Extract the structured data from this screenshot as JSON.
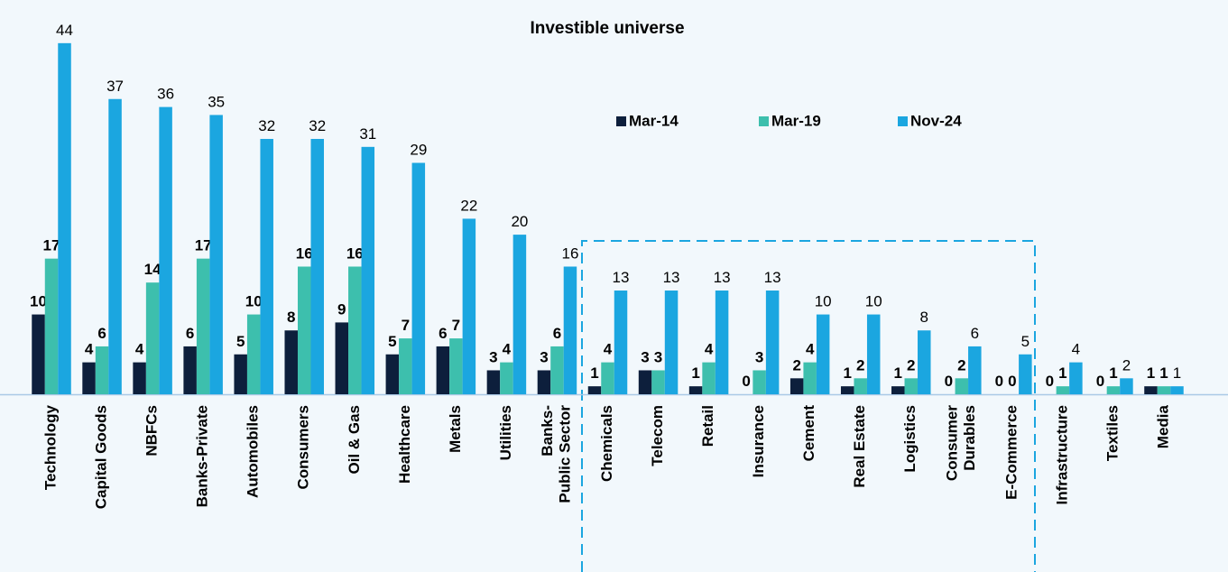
{
  "chart_data": {
    "type": "bar",
    "title": "Investible universe",
    "categories": [
      "Technology",
      "Capital Goods",
      "NBFCs",
      "Banks-Private",
      "Automobiles",
      "Consumers",
      "Oil & Gas",
      "Healthcare",
      "Metals",
      "Utilities",
      "Banks-Public Sector",
      "Chemicals",
      "Telecom",
      "Retail",
      "Insurance",
      "Cement",
      "Real Estate",
      "Logistics",
      "Consumer Durables",
      "E-Commerce",
      "Infrastructure",
      "Textiles",
      "Media"
    ],
    "series": [
      {
        "name": "Mar-14",
        "color": "#0d1f3c",
        "values": [
          10,
          4,
          4,
          6,
          5,
          8,
          9,
          5,
          6,
          3,
          3,
          1,
          3,
          1,
          0,
          2,
          1,
          1,
          0,
          0,
          0,
          0,
          1
        ]
      },
      {
        "name": "Mar-19",
        "color": "#3dbfad",
        "values": [
          17,
          6,
          14,
          17,
          10,
          16,
          16,
          7,
          7,
          4,
          6,
          4,
          3,
          4,
          3,
          4,
          2,
          2,
          2,
          0,
          1,
          1,
          1
        ]
      },
      {
        "name": "Nov-24",
        "color": "#1ba6e0",
        "values": [
          44,
          37,
          36,
          35,
          32,
          32,
          31,
          29,
          22,
          20,
          16,
          13,
          13,
          13,
          13,
          10,
          10,
          8,
          6,
          5,
          4,
          2,
          1
        ]
      }
    ],
    "ylim": [
      0,
      45
    ],
    "legend": "top-right"
  }
}
